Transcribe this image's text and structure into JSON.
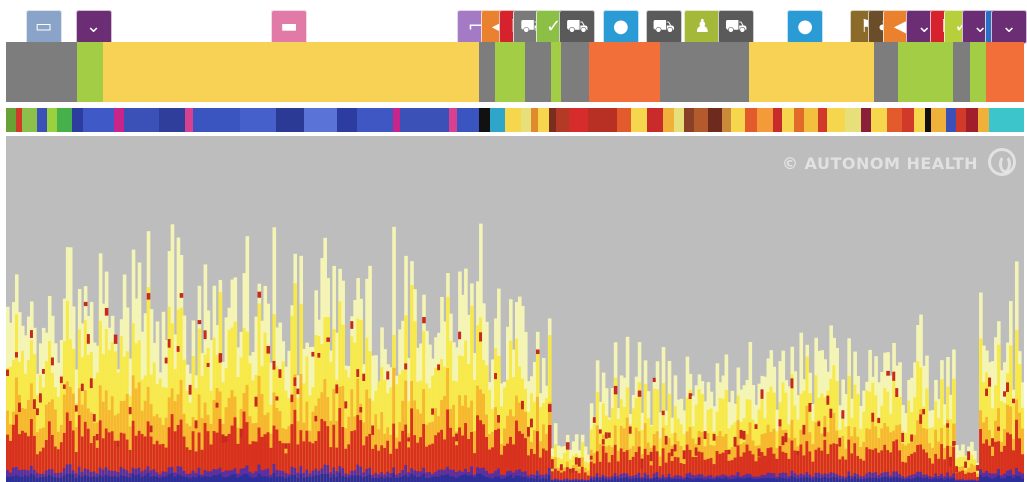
{
  "watermark": "© AUTONOM HEALTH",
  "colors": {
    "sleep": "#f7d254",
    "sedentary": "#7d7d7d",
    "active": "#a3cd45",
    "stress": "#f26f3a",
    "spectrogram_bg": "#bdbdbd"
  },
  "chart_data": {
    "type": "heatmap",
    "title": "",
    "xlabel": "",
    "ylabel": "",
    "activity_track": [
      {
        "state": "sedentary",
        "start": 0,
        "end": 7
      },
      {
        "state": "active",
        "start": 7,
        "end": 9.5
      },
      {
        "state": "sleep",
        "start": 9.5,
        "end": 46.5
      },
      {
        "state": "sedentary",
        "start": 46.5,
        "end": 48
      },
      {
        "state": "active",
        "start": 48,
        "end": 51
      },
      {
        "state": "sedentary",
        "start": 51,
        "end": 53.5
      },
      {
        "state": "active",
        "start": 53.5,
        "end": 54.5
      },
      {
        "state": "sedentary",
        "start": 54.5,
        "end": 57.3
      },
      {
        "state": "stress",
        "start": 57.3,
        "end": 64.2
      },
      {
        "state": "sedentary",
        "start": 64.2,
        "end": 73
      },
      {
        "state": "sleep",
        "start": 73,
        "end": 85.3
      },
      {
        "state": "sedentary",
        "start": 85.3,
        "end": 87.6
      },
      {
        "state": "active",
        "start": 87.6,
        "end": 93
      },
      {
        "state": "sedentary",
        "start": 93,
        "end": 94.7
      },
      {
        "state": "active",
        "start": 94.7,
        "end": 96.3
      },
      {
        "state": "stress",
        "start": 96.3,
        "end": 100
      }
    ],
    "band_strip": [
      {
        "c": "#6aa136",
        "s": 0,
        "e": 1
      },
      {
        "c": "#d13a2a",
        "s": 1,
        "e": 1.6
      },
      {
        "c": "#8cc04a",
        "s": 1.6,
        "e": 3
      },
      {
        "c": "#3c51b7",
        "s": 3,
        "e": 4
      },
      {
        "c": "#9bd03f",
        "s": 4,
        "e": 5
      },
      {
        "c": "#46b04a",
        "s": 5,
        "e": 6.5
      },
      {
        "c": "#2d3d9f",
        "s": 6.5,
        "e": 7.6
      },
      {
        "c": "#3f59c6",
        "s": 7.6,
        "e": 10.6
      },
      {
        "c": "#c9248a",
        "s": 10.6,
        "e": 11.6
      },
      {
        "c": "#3c51b7",
        "s": 11.6,
        "e": 15
      },
      {
        "c": "#2f3e9a",
        "s": 15,
        "e": 17.6
      },
      {
        "c": "#d84090",
        "s": 17.6,
        "e": 18.4
      },
      {
        "c": "#3a55bf",
        "s": 18.4,
        "e": 23
      },
      {
        "c": "#4560cb",
        "s": 23,
        "e": 26.5
      },
      {
        "c": "#2b3a95",
        "s": 26.5,
        "e": 29.3
      },
      {
        "c": "#5a73d6",
        "s": 29.3,
        "e": 32.5
      },
      {
        "c": "#2d3d9f",
        "s": 32.5,
        "e": 34.5
      },
      {
        "c": "#3e57c2",
        "s": 34.5,
        "e": 38
      },
      {
        "c": "#c9248a",
        "s": 38,
        "e": 38.7
      },
      {
        "c": "#3c51b7",
        "s": 38.7,
        "e": 43.5
      },
      {
        "c": "#d84090",
        "s": 43.5,
        "e": 44.3
      },
      {
        "c": "#3a55bf",
        "s": 44.3,
        "e": 46.5
      },
      {
        "c": "#111111",
        "s": 46.5,
        "e": 47.5
      },
      {
        "c": "#2fa5c9",
        "s": 47.5,
        "e": 49
      },
      {
        "c": "#f6d64c",
        "s": 49,
        "e": 50.6
      },
      {
        "c": "#e6e07a",
        "s": 50.6,
        "e": 51.6
      },
      {
        "c": "#e08a2e",
        "s": 51.6,
        "e": 52.3
      },
      {
        "c": "#f6d64c",
        "s": 52.3,
        "e": 53.3
      },
      {
        "c": "#7a2e1e",
        "s": 53.3,
        "e": 54
      },
      {
        "c": "#b23a26",
        "s": 54,
        "e": 55.3
      },
      {
        "c": "#d62c2c",
        "s": 55.3,
        "e": 57.2
      },
      {
        "c": "#b83024",
        "s": 57.2,
        "e": 60
      },
      {
        "c": "#e35b2c",
        "s": 60,
        "e": 61.4
      },
      {
        "c": "#f6d64c",
        "s": 61.4,
        "e": 63
      },
      {
        "c": "#c92a2a",
        "s": 63,
        "e": 64.5
      },
      {
        "c": "#f0b13a",
        "s": 64.5,
        "e": 65.6
      },
      {
        "c": "#e7e07a",
        "s": 65.6,
        "e": 66.6
      },
      {
        "c": "#8a3f28",
        "s": 66.6,
        "e": 67.6
      },
      {
        "c": "#b55a2c",
        "s": 67.6,
        "e": 69
      },
      {
        "c": "#6e2a1e",
        "s": 69,
        "e": 70.3
      },
      {
        "c": "#c98a3a",
        "s": 70.3,
        "e": 71.2
      },
      {
        "c": "#f6d64c",
        "s": 71.2,
        "e": 72.6
      },
      {
        "c": "#e35b2c",
        "s": 72.6,
        "e": 73.8
      },
      {
        "c": "#f29b38",
        "s": 73.8,
        "e": 75.3
      },
      {
        "c": "#c92a2a",
        "s": 75.3,
        "e": 76.2
      },
      {
        "c": "#f6d64c",
        "s": 76.2,
        "e": 77.4
      },
      {
        "c": "#e26a2a",
        "s": 77.4,
        "e": 78.4
      },
      {
        "c": "#f2c03c",
        "s": 78.4,
        "e": 79.8
      },
      {
        "c": "#d13a2a",
        "s": 79.8,
        "e": 80.6
      },
      {
        "c": "#f6d64c",
        "s": 80.6,
        "e": 82.4
      },
      {
        "c": "#e7e07a",
        "s": 82.4,
        "e": 84
      },
      {
        "c": "#8a1f3a",
        "s": 84,
        "e": 85
      },
      {
        "c": "#f6d64c",
        "s": 85,
        "e": 86.5
      },
      {
        "c": "#e35b2c",
        "s": 86.5,
        "e": 88
      },
      {
        "c": "#d13a2a",
        "s": 88,
        "e": 89.2
      },
      {
        "c": "#f6d64c",
        "s": 89.2,
        "e": 90.3
      },
      {
        "c": "#111111",
        "s": 90.3,
        "e": 90.9
      },
      {
        "c": "#f0b13a",
        "s": 90.9,
        "e": 92.3
      },
      {
        "c": "#3c51b7",
        "s": 92.3,
        "e": 93.3
      },
      {
        "c": "#d13a2a",
        "s": 93.3,
        "e": 94.3
      },
      {
        "c": "#a11f2a",
        "s": 94.3,
        "e": 95.5
      },
      {
        "c": "#f0b13a",
        "s": 95.5,
        "e": 96.6
      },
      {
        "c": "#3cc6cc",
        "s": 96.6,
        "e": 100
      }
    ],
    "markers": [
      {
        "icon": "monitor-icon",
        "color": "#8aa3c8",
        "pos": 3.7
      },
      {
        "icon": "chevron-down-icon",
        "color": "#6b2d73",
        "pos": 8.6
      },
      {
        "icon": "bed-icon",
        "color": "#e27aa7",
        "pos": 27.8
      },
      {
        "icon": "chair-icon",
        "color": "#a57ac4",
        "pos": 46.1
      },
      {
        "icon": "megaphone-icon",
        "color": "#e9812f",
        "pos": 48.4
      },
      {
        "icon": "flag-icon",
        "color": "#d6222d",
        "pos": 50.2
      },
      {
        "icon": "car-icon",
        "color": "#7a7a7a",
        "pos": 51.6
      },
      {
        "icon": "check-icon",
        "color": "#8cbf45",
        "pos": 53.8
      },
      {
        "icon": "car-icon",
        "color": "#5a5a5a",
        "pos": 56.1
      },
      {
        "icon": "head-icon",
        "color": "#2a9bd4",
        "pos": 60.4
      },
      {
        "icon": "car-icon",
        "color": "#5a5a5a",
        "pos": 64.6
      },
      {
        "icon": "walk-icon",
        "color": "#a4b83a",
        "pos": 68.4
      },
      {
        "icon": "car-icon",
        "color": "#5a5a5a",
        "pos": 71.7
      },
      {
        "icon": "head-icon",
        "color": "#2a9bd4",
        "pos": 78.5
      },
      {
        "icon": "flag-icon",
        "color": "#8c6a2a",
        "pos": 84.7
      },
      {
        "icon": "tree-icon",
        "color": "#6b4d2a",
        "pos": 86.4
      },
      {
        "icon": "megaphone-icon",
        "color": "#e9812f",
        "pos": 87.9
      },
      {
        "icon": "chevron-down-icon",
        "color": "#6b2d73",
        "pos": 90.2
      },
      {
        "icon": "flag-icon",
        "color": "#d6222d",
        "pos": 92.5
      },
      {
        "icon": "check-icon",
        "color": "#b7cf3a",
        "pos": 93.9
      },
      {
        "icon": "chevron-down-icon",
        "color": "#6b2d73",
        "pos": 95.7
      },
      {
        "icon": "monitor-icon",
        "color": "#2a6fc4",
        "pos": 97.9
      },
      {
        "icon": "chevron-down-icon",
        "color": "#6b2d73",
        "pos": 99.6
      }
    ],
    "spectrogram": {
      "description_of_pattern": "",
      "bands": [
        {
          "from": 0,
          "to": 46.5,
          "level": 0.62
        },
        {
          "from": 46.5,
          "to": 53.3,
          "level": 0.52
        },
        {
          "from": 53.3,
          "to": 57.3,
          "level": 0.15
        },
        {
          "from": 57.3,
          "to": 73.6,
          "level": 0.35
        },
        {
          "from": 73.6,
          "to": 93,
          "level": 0.4
        },
        {
          "from": 93,
          "to": 95.3,
          "level": 0.1
        },
        {
          "from": 95.3,
          "to": 100,
          "level": 0.55
        }
      ]
    }
  }
}
